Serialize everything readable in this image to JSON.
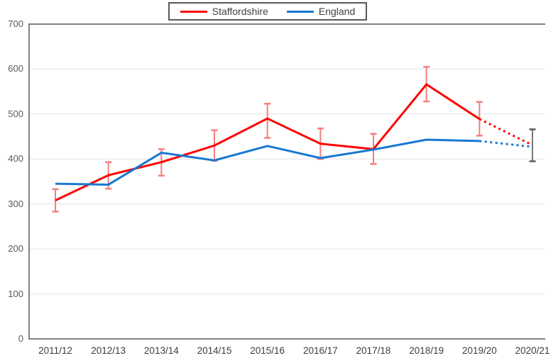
{
  "page": {
    "background": "#FFFFFF"
  },
  "legend": {
    "items": [
      {
        "label": "Staffordshire",
        "color": "#FF0000"
      },
      {
        "label": "England",
        "color": "#1878D1"
      }
    ]
  },
  "chart_data": {
    "type": "line",
    "title": "",
    "xlabel": "",
    "ylabel": "",
    "categories": [
      "2011/12",
      "2012/13",
      "2013/14",
      "2014/15",
      "2015/16",
      "2016/17",
      "2017/18",
      "2018/19",
      "2019/20",
      "2020/21"
    ],
    "series": [
      {
        "name": "Staffordshire",
        "color": "#FF0000",
        "values": [
          308,
          364,
          393,
          430,
          490,
          434,
          422,
          566,
          489,
          431
        ],
        "dashed_from_index": 8,
        "error_bars": {
          "color": "#F57E7E",
          "ranges": [
            [
              283,
              333
            ],
            [
              334,
              393
            ],
            [
              363,
              422
            ],
            [
              396,
              464
            ],
            [
              447,
              523
            ],
            [
              400,
              468
            ],
            [
              389,
              456
            ],
            [
              528,
              605
            ],
            [
              452,
              527
            ]
          ]
        }
      },
      {
        "name": "England",
        "color": "#1878D1",
        "values": [
          345,
          343,
          414,
          397,
          429,
          402,
          421,
          443,
          440,
          427
        ],
        "dashed_from_index": 8
      }
    ],
    "final_error_bar": {
      "category": "2020/21",
      "low": 395,
      "high": 466,
      "color": "#595959"
    },
    "ylim": [
      0,
      700
    ],
    "yticks": [
      700,
      600,
      500,
      400,
      300,
      200,
      100,
      0
    ],
    "grid": true,
    "grid_color": "#E2E2E2",
    "frame_color": "#808080",
    "legend_position": "top-center",
    "notes": "last segment dotted (provisional)"
  }
}
